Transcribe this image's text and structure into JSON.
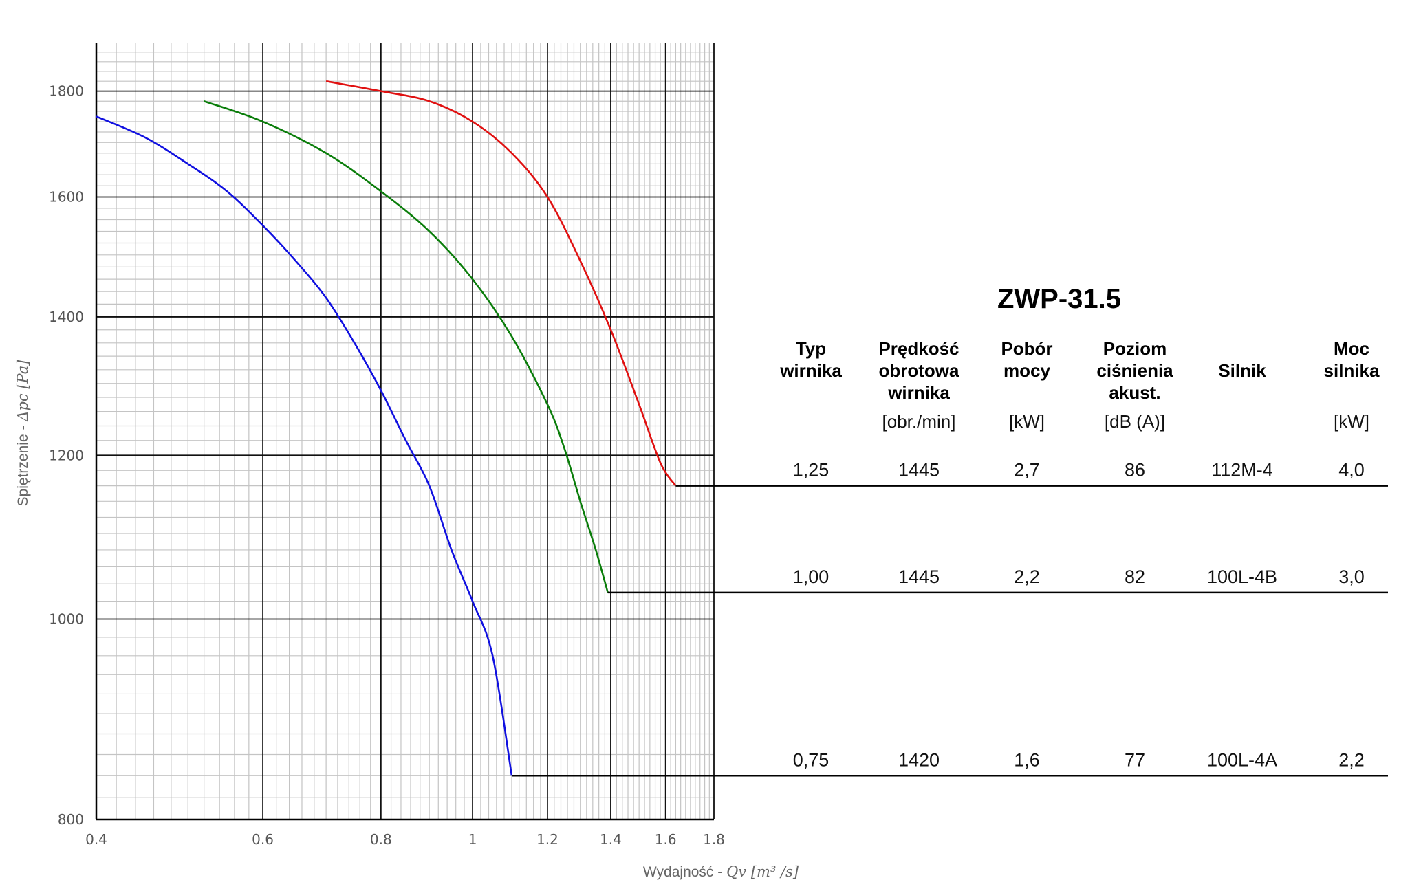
{
  "chart_data": {
    "type": "line",
    "xlabel_prefix": "Wydajność - ",
    "xlabel_math": "Qv [m³ /s]",
    "ylabel_prefix": "Spiętrzenie - ",
    "ylabel_math": "Δpc [Pa]",
    "x_scale": "log",
    "y_scale": "log",
    "xlim": [
      0.4,
      1.8
    ],
    "ylim": [
      800,
      1900
    ],
    "x_ticks": [
      0.4,
      0.6,
      0.8,
      1,
      1.2,
      1.4,
      1.6,
      1.8
    ],
    "x_tick_labels": [
      "0.4",
      "0.6",
      "0.8",
      "1",
      "1.2",
      "1.4",
      "1.6",
      "1.8"
    ],
    "y_ticks": [
      800,
      1000,
      1200,
      1400,
      1600,
      1800
    ],
    "y_tick_labels": [
      "800",
      "1000",
      "1200",
      "1400",
      "1600",
      "1800"
    ],
    "grid": true,
    "series": [
      {
        "color": "#1010e0",
        "points": [
          [
            0.4,
            1750
          ],
          [
            0.45,
            1710
          ],
          [
            0.5,
            1660
          ],
          [
            0.55,
            1610
          ],
          [
            0.6,
            1550
          ],
          [
            0.65,
            1490
          ],
          [
            0.7,
            1430
          ],
          [
            0.75,
            1360
          ],
          [
            0.8,
            1290
          ],
          [
            0.85,
            1220
          ],
          [
            0.9,
            1160
          ],
          [
            0.95,
            1080
          ],
          [
            1.0,
            1020
          ],
          [
            1.05,
            960
          ],
          [
            1.1,
            840
          ]
        ],
        "line_end_x": 1.8,
        "line_end_y": 840
      },
      {
        "color": "#0a7d0a",
        "points": [
          [
            0.52,
            1780
          ],
          [
            0.6,
            1740
          ],
          [
            0.7,
            1680
          ],
          [
            0.8,
            1610
          ],
          [
            0.9,
            1540
          ],
          [
            1.0,
            1460
          ],
          [
            1.1,
            1370
          ],
          [
            1.2,
            1270
          ],
          [
            1.25,
            1210
          ],
          [
            1.3,
            1140
          ],
          [
            1.35,
            1080
          ],
          [
            1.39,
            1030
          ]
        ],
        "line_end_x": 1.8,
        "line_end_y": 1030
      },
      {
        "color": "#e01010",
        "points": [
          [
            0.7,
            1820
          ],
          [
            0.8,
            1800
          ],
          [
            0.9,
            1780
          ],
          [
            1.0,
            1740
          ],
          [
            1.1,
            1680
          ],
          [
            1.2,
            1600
          ],
          [
            1.3,
            1490
          ],
          [
            1.4,
            1380
          ],
          [
            1.5,
            1270
          ],
          [
            1.58,
            1190
          ],
          [
            1.64,
            1160
          ]
        ],
        "line_end_x": 1.8,
        "line_end_y": 1160
      }
    ]
  },
  "table": {
    "title": "ZWP-31.5",
    "columns": [
      {
        "header": [
          "Typ",
          "wirnika"
        ],
        "unit": ""
      },
      {
        "header": [
          "Prędkość",
          "obrotowa",
          "wirnika"
        ],
        "unit": "[obr./min]"
      },
      {
        "header": [
          "Pobór",
          "mocy"
        ],
        "unit": "[kW]"
      },
      {
        "header": [
          "Poziom",
          "ciśnienia",
          "akust."
        ],
        "unit": "[dB (A)]"
      },
      {
        "header": [
          "Silnik"
        ],
        "unit": ""
      },
      {
        "header": [
          "Moc",
          "silnika"
        ],
        "unit": "[kW]"
      }
    ],
    "rows": [
      {
        "values": [
          "1,25",
          "1445",
          "2,7",
          "86",
          "112M-4",
          "4,0"
        ],
        "series": 2
      },
      {
        "values": [
          "1,00",
          "1445",
          "2,2",
          "82",
          "100L-4B",
          "3,0"
        ],
        "series": 1
      },
      {
        "values": [
          "0,75",
          "1420",
          "1,6",
          "77",
          "100L-4A",
          "2,2"
        ],
        "series": 0
      }
    ]
  }
}
